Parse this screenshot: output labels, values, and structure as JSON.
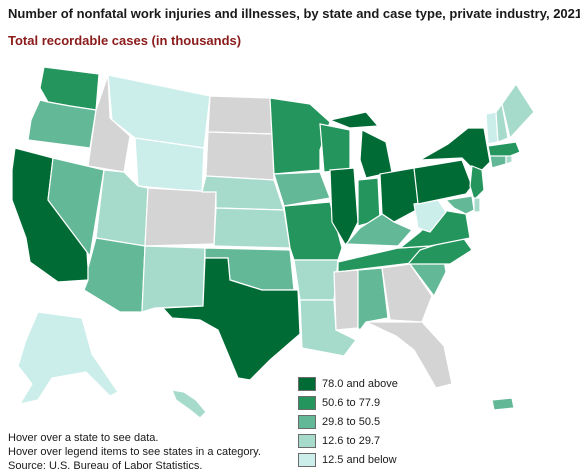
{
  "title": "Number of nonfatal work injuries and illnesses, by state and case type, private industry, 2021",
  "subtitle": "Total recordable cases (in thousands)",
  "colors": {
    "c78": "#006b34",
    "c50": "#23955d",
    "c29": "#63b997",
    "c12": "#a6dbcb",
    "c0": "#cbeeea",
    "nodata": "#d4d4d4"
  },
  "legend": [
    {
      "label": "78.0 and above",
      "color_key": "c78"
    },
    {
      "label": "50.6 to 77.9",
      "color_key": "c50"
    },
    {
      "label": "29.8 to 50.5",
      "color_key": "c29"
    },
    {
      "label": "12.6 to 29.7",
      "color_key": "c12"
    },
    {
      "label": "12.5 and below",
      "color_key": "c0"
    }
  ],
  "notes": [
    "Hover over a state to see data.",
    "Hover over legend items to see states in a category.",
    "Source: U.S. Bureau of Labor Statistics."
  ],
  "state_categories": {
    "WA": "c50",
    "OR": "c29",
    "CA": "c78",
    "NV": "c29",
    "ID": "nodata",
    "MT": "c0",
    "WY": "c0",
    "UT": "c12",
    "AZ": "c29",
    "CO": "nodata",
    "NM": "c12",
    "ND": "nodata",
    "SD": "nodata",
    "NE": "c12",
    "KS": "c12",
    "OK": "c29",
    "TX": "c78",
    "MN": "c50",
    "IA": "c29",
    "MO": "c50",
    "AR": "c12",
    "LA": "c12",
    "WI": "c50",
    "IL": "c78",
    "MI": "c78",
    "IN": "c50",
    "OH": "c78",
    "KY": "c29",
    "TN": "c50",
    "MS": "nodata",
    "AL": "c29",
    "GA": "nodata",
    "FL": "nodata",
    "SC": "c29",
    "NC": "c50",
    "VA": "c50",
    "WV": "c0",
    "PA": "c78",
    "NY": "c78",
    "VT": "c0",
    "NH": "c12",
    "ME": "c12",
    "MA": "c50",
    "RI": "c12",
    "CT": "c29",
    "NJ": "c50",
    "DE": "c12",
    "MD": "c29",
    "AK": "c0",
    "HI": "c12",
    "PR": "c29"
  }
}
